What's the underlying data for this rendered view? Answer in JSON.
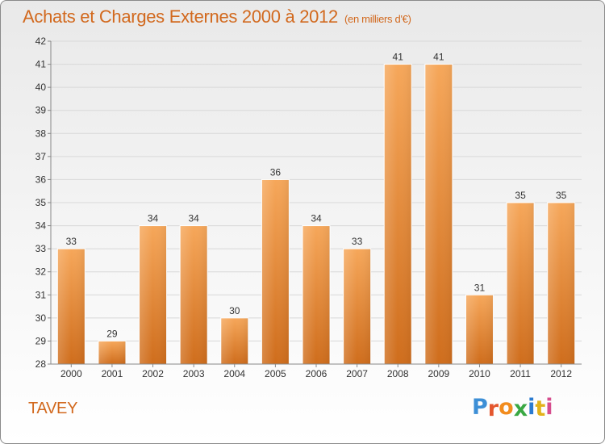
{
  "title": "Achats et Charges Externes 2000 à 2012",
  "unit_note": "(en milliers d'€)",
  "commune": "TAVEY",
  "logo": {
    "letters": [
      "P",
      "r",
      "o",
      "x",
      "i",
      "t",
      "i"
    ],
    "colors": [
      "#3d8fd6",
      "#e4572e",
      "#f28c1e",
      "#3aa843",
      "#2b7bd0",
      "#e3b21a",
      "#d64d8e"
    ]
  },
  "colors": {
    "accent": "#d2691e",
    "bar_top": "#f6a75a",
    "bar_bottom": "#cf6d1c"
  },
  "chart_data": {
    "type": "bar",
    "title": "Achats et Charges Externes 2000 à 2012",
    "subtitle": "(en milliers d'€)",
    "categories": [
      "2000",
      "2001",
      "2002",
      "2003",
      "2004",
      "2005",
      "2006",
      "2007",
      "2008",
      "2009",
      "2010",
      "2011",
      "2012"
    ],
    "values": [
      33,
      29,
      34,
      34,
      30,
      36,
      34,
      33,
      41,
      41,
      31,
      35,
      35
    ],
    "ylim": [
      28,
      42
    ],
    "yticks": [
      28,
      29,
      30,
      31,
      32,
      33,
      34,
      35,
      36,
      37,
      38,
      39,
      40,
      41,
      42
    ],
    "grid": true,
    "data_labels": true
  }
}
